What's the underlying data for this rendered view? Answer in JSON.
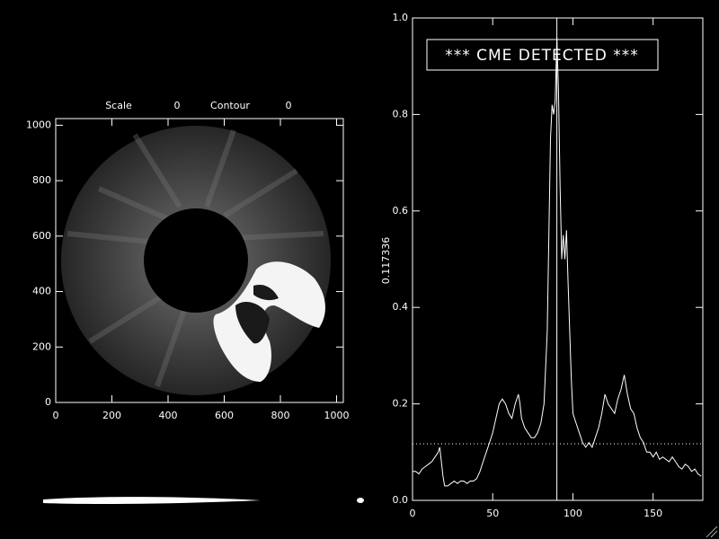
{
  "chart_data": [
    {
      "type": "image",
      "header": [
        {
          "label": "Scale",
          "value": 0
        },
        {
          "label": "Contour",
          "value": 0
        }
      ],
      "xlim": [
        0,
        1024
      ],
      "ylim": [
        0,
        1024
      ],
      "xticks": [
        0,
        200,
        400,
        600,
        800,
        1000
      ],
      "yticks": [
        0,
        200,
        400,
        600,
        800,
        1000
      ]
    },
    {
      "type": "line",
      "threshold": 0.117336,
      "marker_x": 90,
      "annotation": "*** CME DETECTED ***",
      "color": "#ffffff",
      "xlim": [
        0,
        181
      ],
      "ylim": [
        0,
        1.0
      ],
      "xticks": [
        0,
        50,
        100,
        150
      ],
      "yticks": [
        {
          "value": 0,
          "label": "0.0"
        },
        0.2,
        0.4,
        0.6,
        0.8,
        {
          "value": 1.0,
          "label": "1.0"
        }
      ],
      "x": [
        0,
        2,
        4,
        6,
        8,
        10,
        12,
        14,
        16,
        17,
        18,
        19,
        20,
        22,
        24,
        26,
        28,
        30,
        32,
        34,
        36,
        38,
        40,
        42,
        44,
        46,
        48,
        50,
        52,
        54,
        56,
        58,
        60,
        62,
        64,
        66,
        67,
        68,
        70,
        72,
        74,
        76,
        78,
        80,
        82,
        84,
        85,
        86,
        87,
        88,
        89,
        90,
        91,
        92,
        93,
        94,
        95,
        96,
        97,
        98,
        99,
        100,
        102,
        104,
        106,
        108,
        110,
        112,
        114,
        116,
        118,
        120,
        122,
        124,
        126,
        128,
        130,
        132,
        134,
        136,
        138,
        140,
        142,
        144,
        146,
        148,
        150,
        152,
        154,
        156,
        158,
        160,
        162,
        164,
        166,
        168,
        170,
        172,
        174,
        176,
        178,
        180
      ],
      "values": [
        0.06,
        0.06,
        0.055,
        0.065,
        0.07,
        0.075,
        0.08,
        0.09,
        0.1,
        0.11,
        0.08,
        0.05,
        0.03,
        0.03,
        0.035,
        0.04,
        0.035,
        0.04,
        0.04,
        0.035,
        0.04,
        0.04,
        0.045,
        0.06,
        0.08,
        0.1,
        0.12,
        0.14,
        0.17,
        0.2,
        0.21,
        0.2,
        0.18,
        0.17,
        0.2,
        0.22,
        0.2,
        0.17,
        0.15,
        0.14,
        0.13,
        0.13,
        0.14,
        0.16,
        0.2,
        0.35,
        0.55,
        0.75,
        0.82,
        0.8,
        0.83,
        0.96,
        0.85,
        0.65,
        0.5,
        0.55,
        0.5,
        0.56,
        0.45,
        0.35,
        0.25,
        0.18,
        0.16,
        0.14,
        0.12,
        0.11,
        0.12,
        0.11,
        0.13,
        0.15,
        0.18,
        0.22,
        0.2,
        0.19,
        0.18,
        0.21,
        0.23,
        0.26,
        0.22,
        0.19,
        0.18,
        0.15,
        0.13,
        0.12,
        0.1,
        0.1,
        0.09,
        0.1,
        0.085,
        0.09,
        0.085,
        0.08,
        0.09,
        0.08,
        0.07,
        0.065,
        0.075,
        0.07,
        0.06,
        0.065,
        0.055,
        0.05
      ]
    }
  ]
}
